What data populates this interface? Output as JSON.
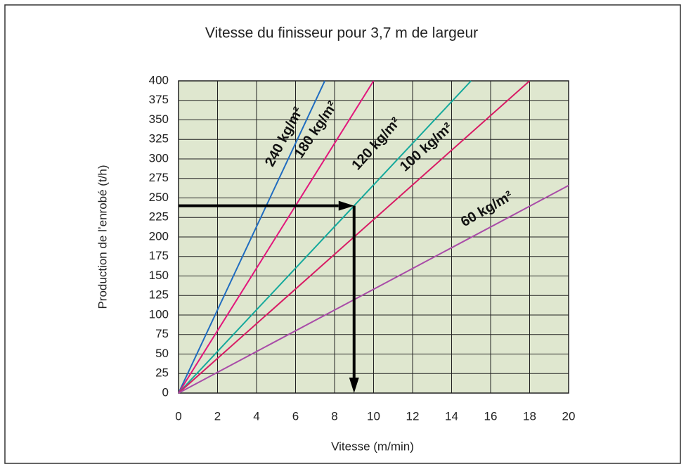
{
  "chart_data": {
    "type": "line",
    "title": "Vitesse du finisseur pour 3,7 m de largeur",
    "xlabel": "Vitesse (m/min)",
    "ylabel": "Production de l’enrobé (t/h)",
    "xlim": [
      0,
      20
    ],
    "ylim": [
      0,
      400
    ],
    "xticks": [
      0,
      2,
      4,
      6,
      8,
      10,
      12,
      14,
      16,
      18,
      20
    ],
    "yticks": [
      0,
      25,
      50,
      75,
      100,
      125,
      150,
      175,
      200,
      225,
      250,
      275,
      300,
      325,
      350,
      375,
      400
    ],
    "grid": true,
    "series": [
      {
        "name": "240 kg/m²",
        "color": "#1f6cc0",
        "x": [
          0,
          7.5
        ],
        "values": [
          0,
          400
        ]
      },
      {
        "name": "180 kg/m²",
        "color": "#e2177c",
        "x": [
          0,
          10
        ],
        "values": [
          0,
          400
        ]
      },
      {
        "name": "120 kg/m²",
        "color": "#15a99c",
        "x": [
          0,
          15
        ],
        "values": [
          0,
          400
        ]
      },
      {
        "name": "100 kg/m²",
        "color": "#d81b64",
        "x": [
          0,
          18
        ],
        "values": [
          0,
          400
        ]
      },
      {
        "name": "60 kg/m²",
        "color": "#a94ca8",
        "x": [
          0,
          20
        ],
        "values": [
          0,
          266
        ]
      }
    ],
    "arrow": {
      "color": "#000000",
      "x": [
        0,
        9,
        9
      ],
      "values": [
        240,
        240,
        0
      ]
    }
  }
}
